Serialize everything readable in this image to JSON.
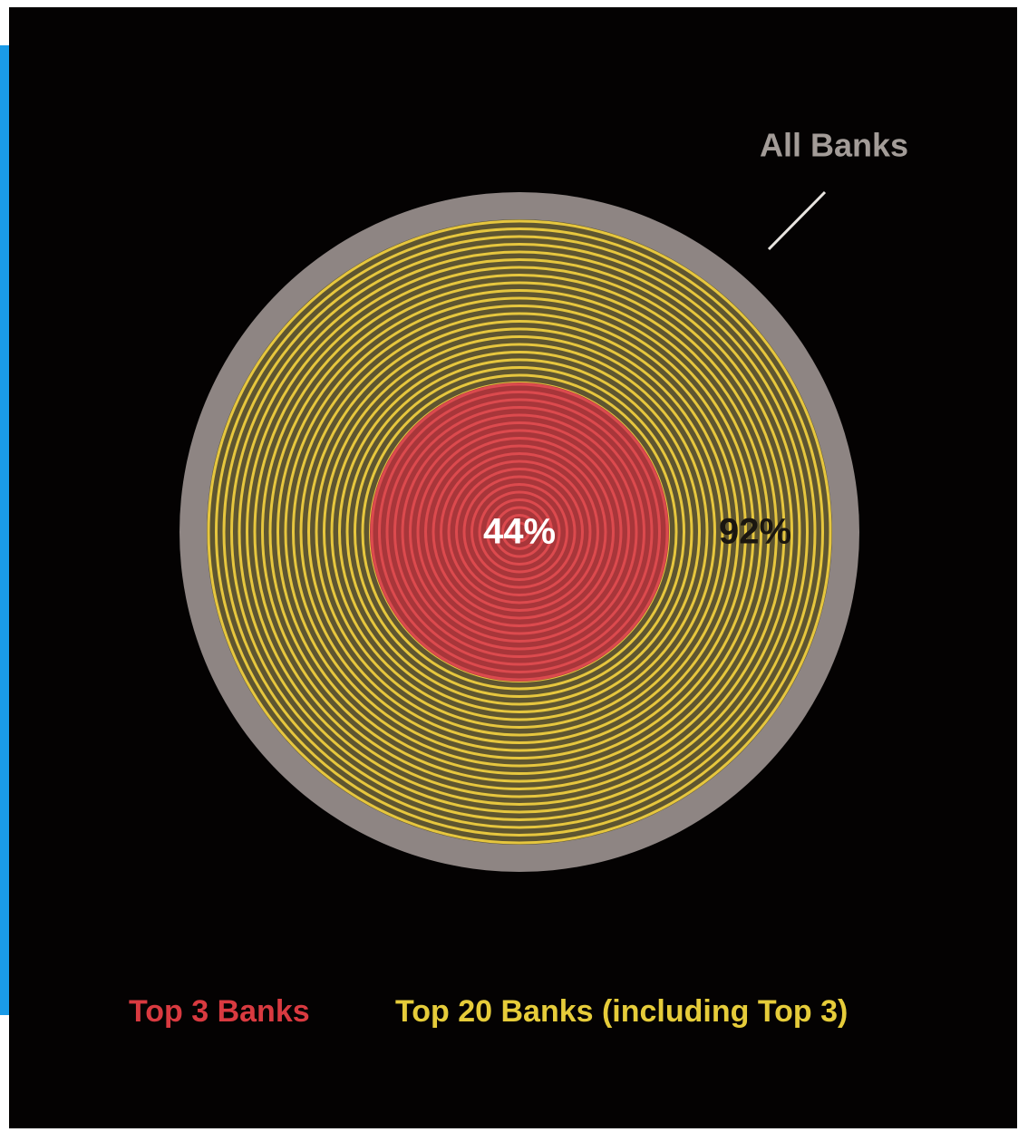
{
  "chart_data": {
    "type": "nested-circles",
    "series": [
      {
        "name": "All Banks",
        "color": "#8e8583",
        "value": 100
      },
      {
        "name": "Top 20 Banks (including Top 3)",
        "color": "#e6c63e",
        "value": 92,
        "value_label": "92%"
      },
      {
        "name": "Top 3 Banks",
        "color": "#dc4a4e",
        "value": 44,
        "value_label": "44%"
      }
    ]
  }
}
